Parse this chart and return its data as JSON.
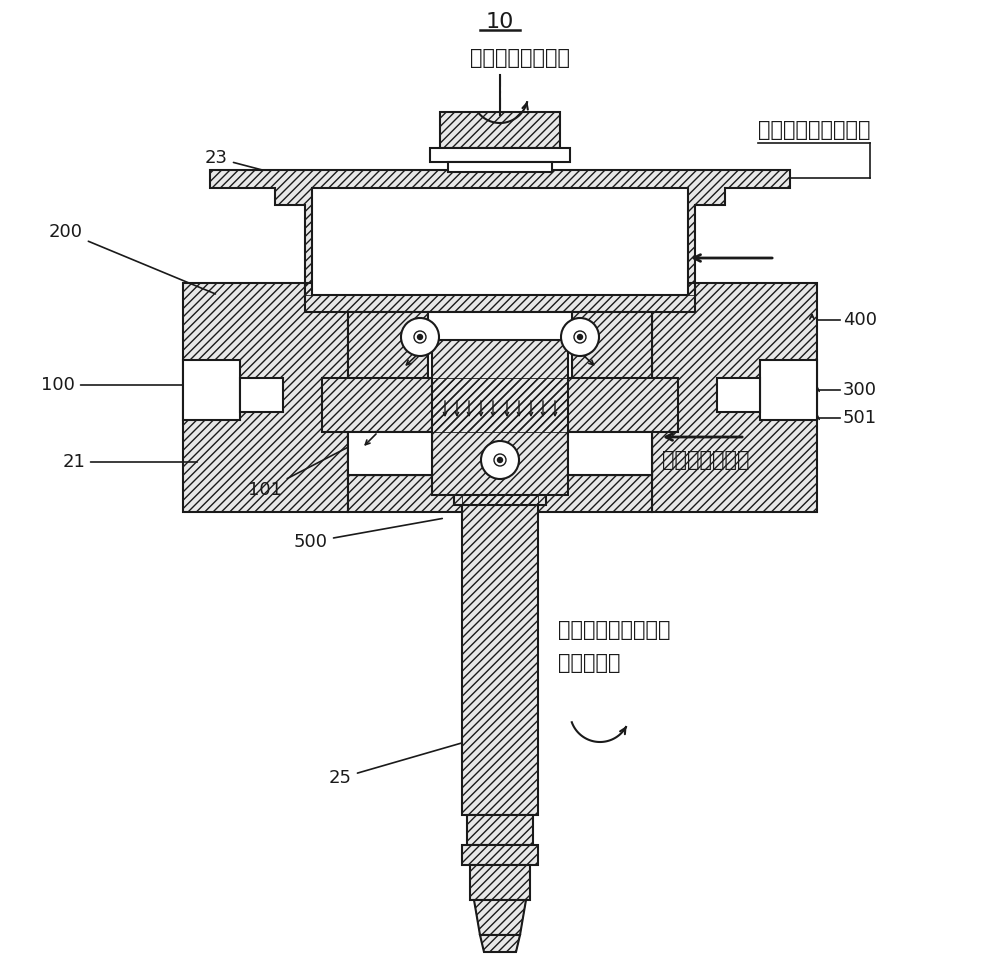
{
  "bg_color": "#ffffff",
  "line_color": "#1a1a1a",
  "labels": {
    "top_label": "10",
    "label_200": "200",
    "label_23": "23",
    "label_100": "100",
    "label_21": "21",
    "label_101": "101",
    "label_500": "500",
    "label_25": "25",
    "label_400": "400",
    "label_300": "300",
    "label_501": "501",
    "text_top": "动盘倾覆力矩方向",
    "text_right_top": "动盘气体力作用方向",
    "text_right_mid": "背压力作用方向",
    "text_bottom_line1": "动盘背压力产生的翻",
    "text_bottom_line2": "转力矩方向"
  },
  "font_size_label": 13,
  "font_size_text": 15,
  "font_size_title": 16
}
